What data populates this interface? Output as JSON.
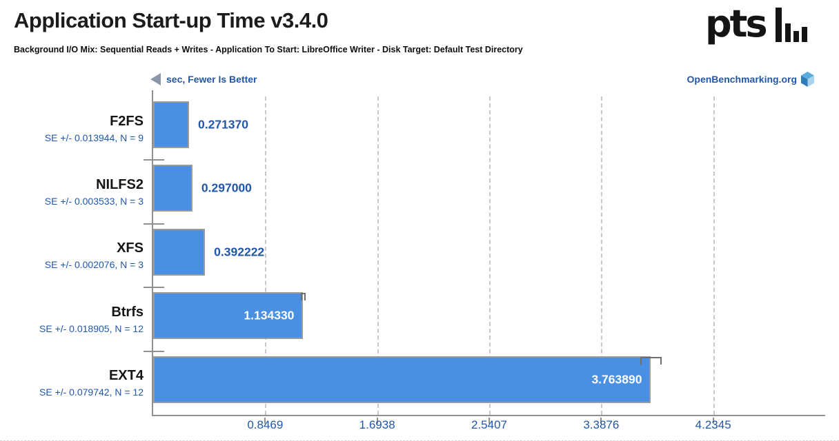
{
  "header": {
    "title": "Application Start-up Time v3.4.0",
    "subtitle": "Background I/O Mix: Sequential Reads + Writes - Application To Start: LibreOffice Writer - Disk Target: Default Test Directory",
    "logo_text": "pts"
  },
  "meta": {
    "unit_note": "sec, Fewer Is Better",
    "site": "OpenBenchmarking.org"
  },
  "chart_data": {
    "type": "bar",
    "orientation": "horizontal",
    "title": "Application Start-up Time v3.4.0",
    "unit": "sec",
    "better": "fewer",
    "categories": [
      "F2FS",
      "NILFS2",
      "XFS",
      "Btrfs",
      "EXT4"
    ],
    "values": [
      0.27137,
      0.297,
      0.392222,
      1.13433,
      3.76389
    ],
    "value_labels": [
      "0.271370",
      "0.297000",
      "0.392222",
      "1.134330",
      "3.763890"
    ],
    "se": [
      0.013944,
      0.003533,
      0.002076,
      0.018905,
      0.079742
    ],
    "se_labels": [
      "SE +/- 0.013944, N = 9",
      "SE +/- 0.003533, N = 3",
      "SE +/- 0.002076, N = 3",
      "SE +/- 0.018905, N = 12",
      "SE +/- 0.079742, N = 12"
    ],
    "xlim": [
      0,
      5.0814
    ],
    "xticks": [
      0.8469,
      1.6938,
      2.5407,
      3.3876,
      4.2345
    ],
    "xtick_labels": [
      "0.8469",
      "1.6938",
      "2.5407",
      "3.3876",
      "4.2345"
    ],
    "grid": true,
    "legend": "none"
  },
  "colors": {
    "accent_blue": "#2257a8",
    "bar": "#4a90e2",
    "bar_border": "#9b9b9b",
    "axis": "#8f8f8f",
    "grid": "#c8c8c8",
    "title_ink": "#1c1c1c"
  }
}
